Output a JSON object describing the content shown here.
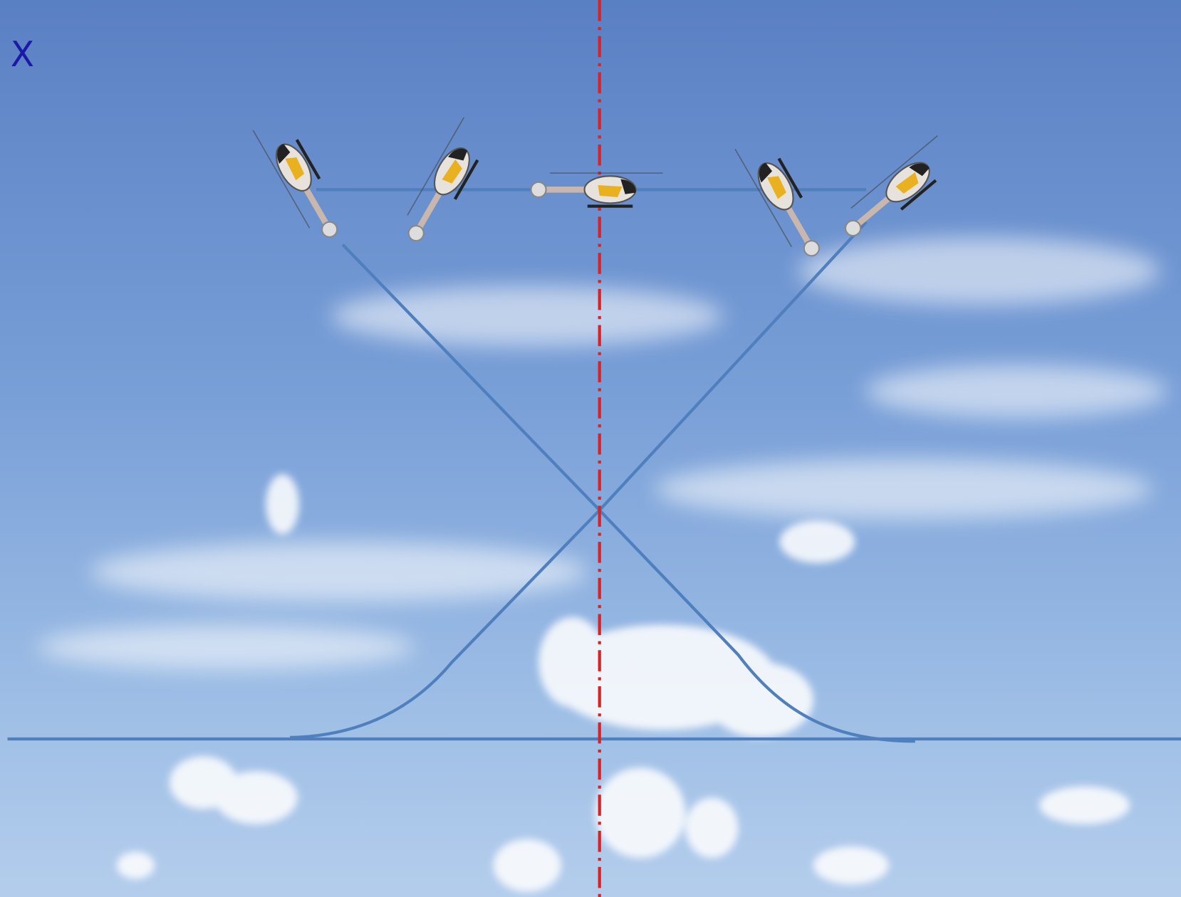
{
  "title": "X"
}
